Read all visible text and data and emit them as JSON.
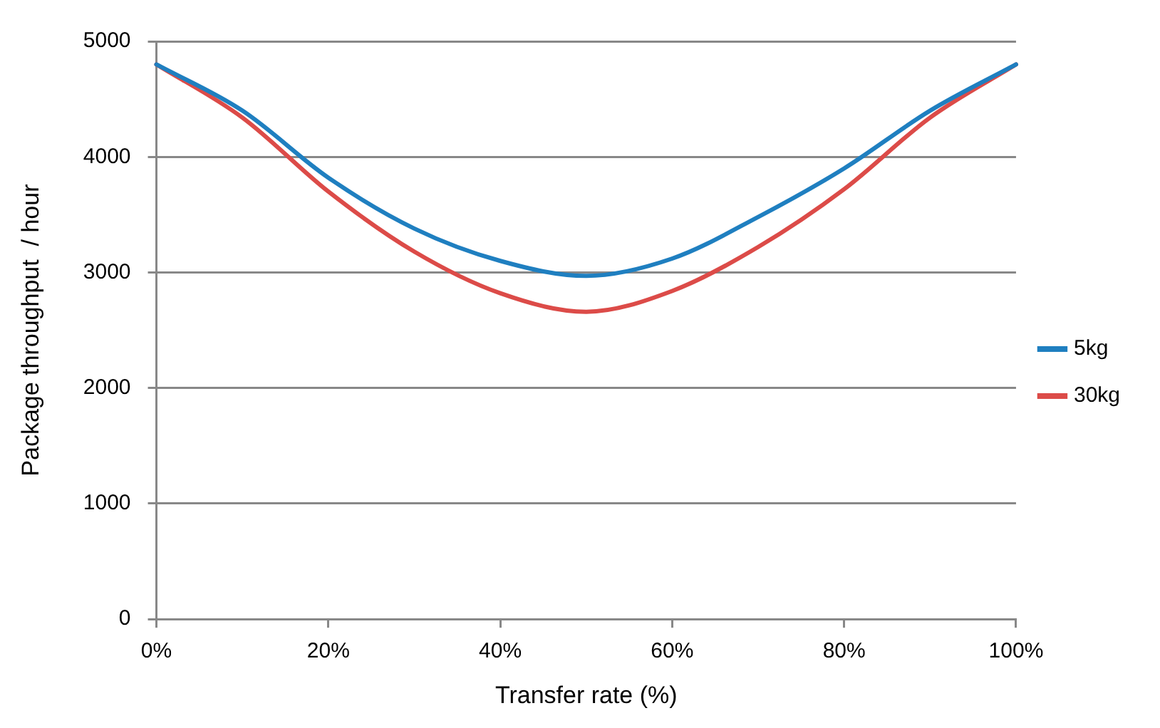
{
  "chart_data": {
    "type": "line",
    "xlabel": "Transfer rate (%)",
    "ylabel": "Package throughput  / hour",
    "x": [
      0,
      10,
      20,
      30,
      40,
      50,
      60,
      70,
      80,
      90,
      100
    ],
    "series": [
      {
        "name": "5kg",
        "color": "#1f7fc0",
        "values": [
          4800,
          4400,
          3820,
          3380,
          3100,
          2970,
          3120,
          3480,
          3900,
          4400,
          4800
        ]
      },
      {
        "name": "30kg",
        "color": "#dc4b48",
        "values": [
          4800,
          4340,
          3700,
          3180,
          2820,
          2660,
          2840,
          3220,
          3720,
          4340,
          4800
        ]
      }
    ],
    "xlim": [
      0,
      100
    ],
    "xticks": [
      {
        "value": 0,
        "label": "0%"
      },
      {
        "value": 20,
        "label": "20%"
      },
      {
        "value": 40,
        "label": "40%"
      },
      {
        "value": 60,
        "label": "60%"
      },
      {
        "value": 80,
        "label": "80%"
      },
      {
        "value": 100,
        "label": "100%"
      }
    ],
    "ylim": [
      0,
      5000
    ],
    "yticks": [
      0,
      1000,
      2000,
      3000,
      4000,
      5000
    ],
    "grid": "y",
    "legend": "right",
    "marker": "none",
    "line_style": "solid"
  }
}
